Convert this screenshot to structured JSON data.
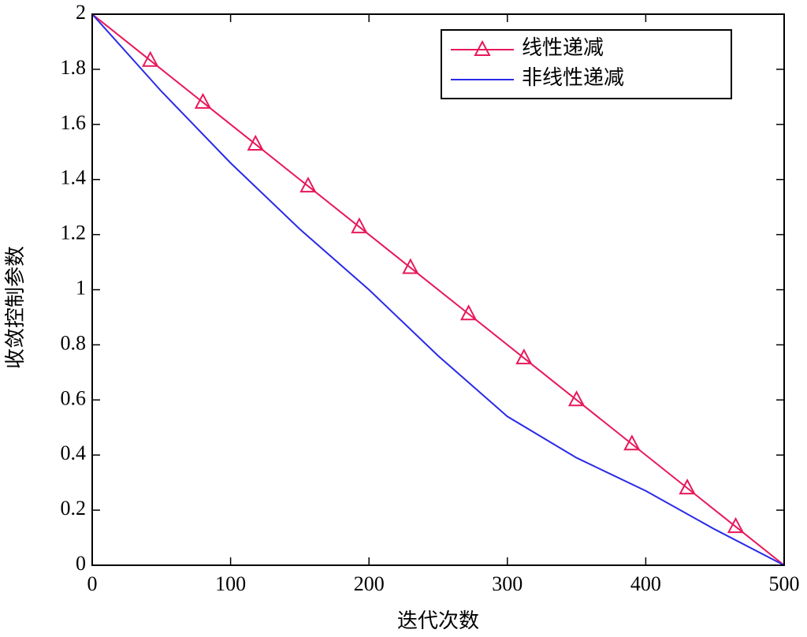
{
  "chart_data": {
    "type": "line",
    "x_label": "迭代次数",
    "y_label": "收敛控制参数",
    "xlim": [
      0,
      500
    ],
    "ylim": [
      0,
      2
    ],
    "xticks": [
      0,
      100,
      200,
      300,
      400,
      500
    ],
    "yticks": [
      0,
      0.2,
      0.4,
      0.6,
      0.8,
      1,
      1.2,
      1.4,
      1.6,
      1.8,
      2
    ],
    "legend": "upper right",
    "series": [
      {
        "name": "线性递减",
        "color": "#e8185a",
        "marker": "triangle",
        "x": [
          0,
          42,
          80,
          118,
          156,
          193,
          230,
          272,
          312,
          350,
          390,
          430,
          465,
          500
        ],
        "values": [
          2,
          1.832,
          1.68,
          1.528,
          1.376,
          1.228,
          1.08,
          0.912,
          0.752,
          0.6,
          0.44,
          0.28,
          0.14,
          0
        ]
      },
      {
        "name": "非线性递减",
        "color": "#2a2ae8",
        "x": [
          0,
          50,
          100,
          150,
          200,
          250,
          300,
          350,
          400,
          450,
          500
        ],
        "values": [
          2,
          1.72,
          1.46,
          1.22,
          1.0,
          0.76,
          0.54,
          0.39,
          0.27,
          0.13,
          0
        ]
      }
    ]
  }
}
